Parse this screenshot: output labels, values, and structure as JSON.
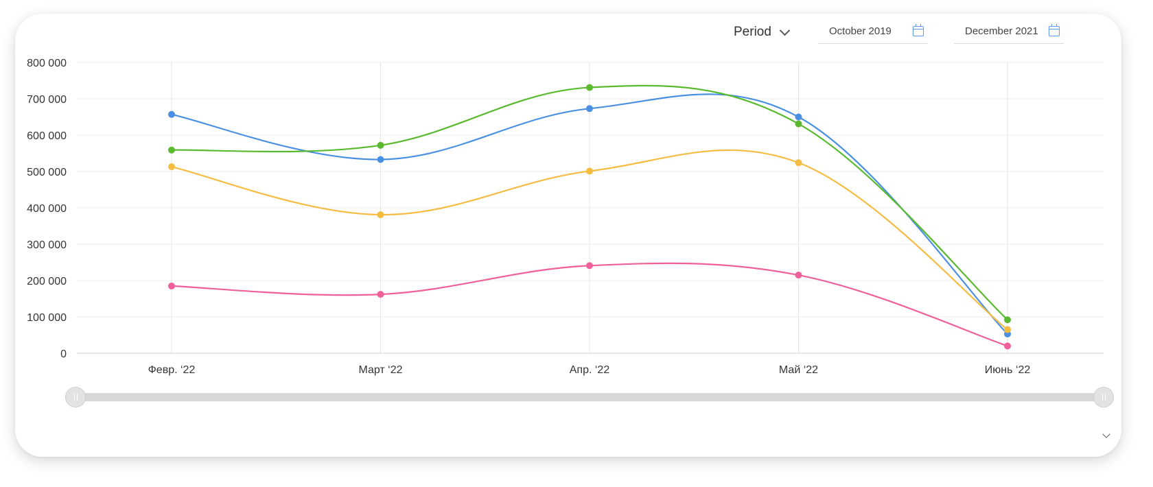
{
  "controls": {
    "period_label": "Period",
    "date_from": "October 2019",
    "date_to": "December 2021"
  },
  "icons": {
    "period_dropdown": "chevron-down-icon",
    "calendar": "calendar-icon",
    "expand": "chevron-down-icon"
  },
  "range_slider": {
    "start": 0,
    "end": 1
  },
  "chart_data": {
    "type": "line",
    "categories": [
      "Февр. ‘22",
      "Март ‘22",
      "Апр. ‘22",
      "Май ‘22",
      "Июнь ‘22"
    ],
    "y_ticks": [
      "0",
      "100 000",
      "200 000",
      "300 000",
      "400 000",
      "500 000",
      "600 000",
      "700 000",
      "800 000"
    ],
    "ylim": [
      0,
      800000
    ],
    "grid": true,
    "legend": "none",
    "series": [
      {
        "color": "#4a90e2",
        "values": [
          657000,
          533000,
          673000,
          650000,
          53000
        ]
      },
      {
        "color": "#5ab92e",
        "values": [
          559000,
          572000,
          731000,
          631000,
          92000
        ]
      },
      {
        "color": "#f5bc42",
        "values": [
          513000,
          381000,
          501000,
          524000,
          65000
        ]
      },
      {
        "color": "#ef5f99",
        "values": [
          185000,
          162000,
          241000,
          215000,
          20000
        ]
      }
    ]
  }
}
